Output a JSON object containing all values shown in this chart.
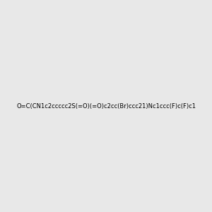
{
  "smiles": "O=C(CN1c2ccccc2S(=O)(=O)c2cc(Br)ccc21)Nc1ccc(F)c(F)c1",
  "image_size": 300,
  "background_color": "#e8e8e8",
  "bond_color": "#2d7d7a",
  "atom_colors": {
    "N": "#2222cc",
    "O": "#cc0000",
    "S": "#cccc00",
    "Br": "#cc8800",
    "F": "#cc00cc"
  }
}
